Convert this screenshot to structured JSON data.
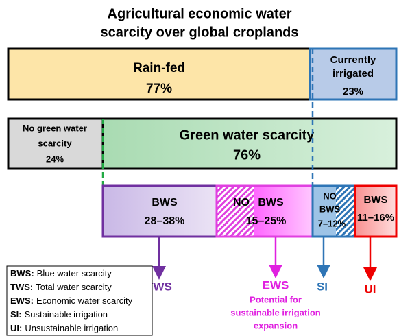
{
  "header": {
    "title": [
      "Agricultural economic water",
      "scarcity over global croplands"
    ]
  },
  "rows": [
    {
      "segments": [
        {
          "label": "Rain-fed",
          "share": "77%"
        },
        {
          "label": [
            "Currently",
            "irrigated"
          ],
          "share": "23%"
        }
      ]
    },
    {
      "segments": [
        {
          "label": [
            "No green water",
            "scarcity"
          ],
          "share": "24%"
        },
        {
          "label": "Green water scarcity",
          "share": "76%"
        }
      ]
    },
    {
      "segments": [
        {
          "label": "BWS",
          "share": "28–38%"
        },
        {
          "label": [
            "NO",
            "BWS"
          ],
          "share": "15–25%"
        },
        {
          "label": [
            "NO",
            "BWS"
          ],
          "share": "7–12%"
        },
        {
          "label": "BWS",
          "share": "11–16%"
        }
      ]
    }
  ],
  "outcomes": [
    {
      "label": "TWS"
    },
    {
      "label": "EWS",
      "note": [
        "Potential for",
        "sustainable irrigation",
        "expansion"
      ]
    },
    {
      "label": "SI"
    },
    {
      "label": "UI"
    }
  ],
  "legend": [
    {
      "abbr": "BWS:",
      "text": "Blue water scarcity"
    },
    {
      "abbr": "TWS:",
      "text": "Total water scarcity"
    },
    {
      "abbr": "EWS:",
      "text": "Economic water scarcity"
    },
    {
      "abbr": "SI:",
      "text": "Sustainable irrigation"
    },
    {
      "abbr": "UI:",
      "text": "Unsustainable irrigation"
    }
  ]
}
